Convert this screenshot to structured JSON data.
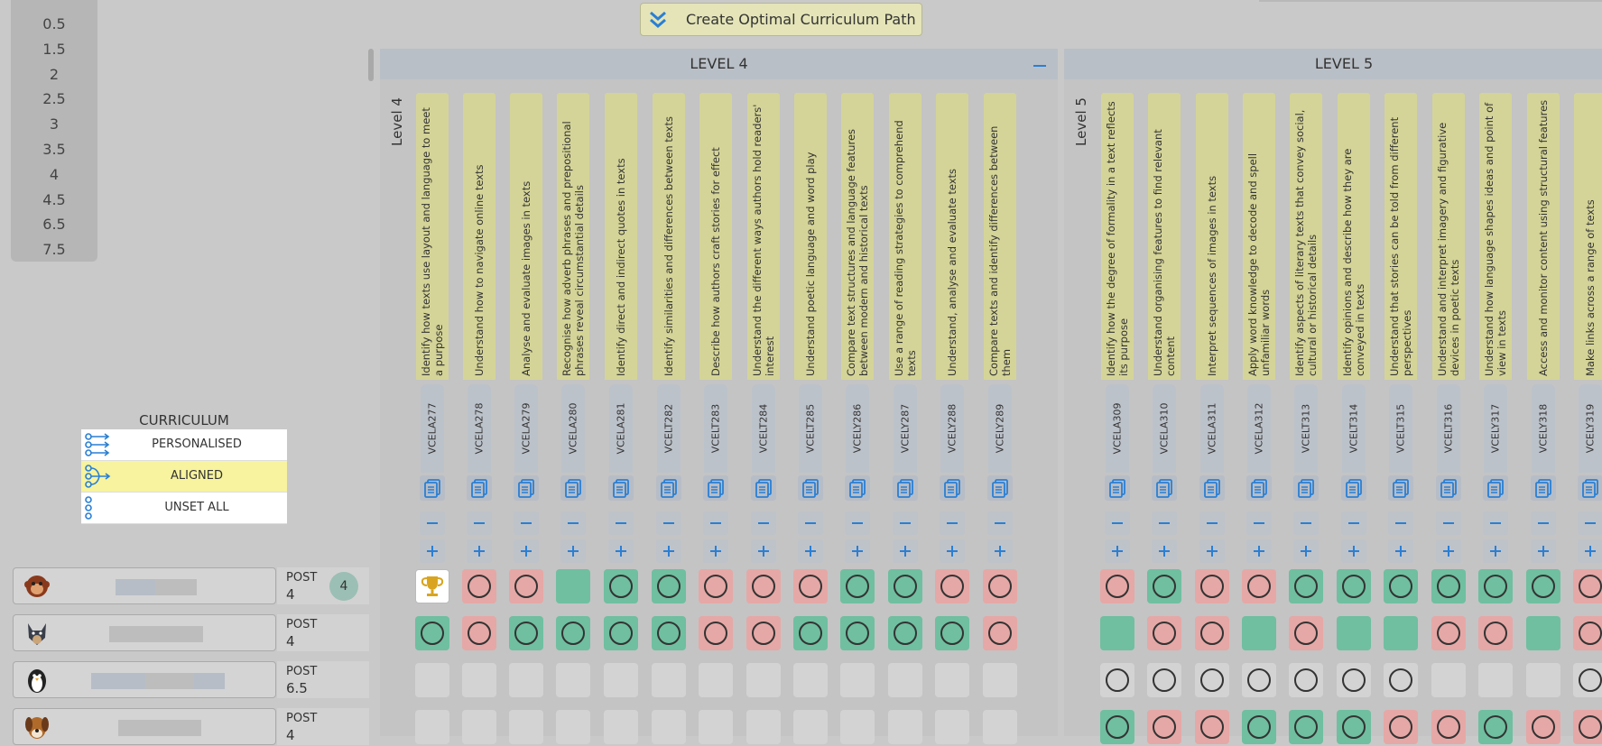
{
  "top_button": {
    "label": "Create Optimal Curriculum Path",
    "icon": "double-chevron-down-icon"
  },
  "scale": {
    "values": [
      "0.5",
      "1.5",
      "2",
      "2.5",
      "3",
      "3.5",
      "4",
      "4.5",
      "6.5",
      "7.5"
    ]
  },
  "curriculum": {
    "title": "CURRICULUM",
    "options": [
      {
        "label": "PERSONALISED",
        "icon": "personalised-path-icon",
        "selected": false
      },
      {
        "label": "ALIGNED",
        "icon": "aligned-path-icon",
        "selected": true
      },
      {
        "label": "UNSET ALL",
        "icon": "unset-icon",
        "selected": false
      }
    ]
  },
  "students": [
    {
      "avatar": "monkey-avatar-icon",
      "post_label": "POST",
      "post_value": "4",
      "badge": "4"
    },
    {
      "avatar": "wolf-avatar-icon",
      "post_label": "POST",
      "post_value": "4"
    },
    {
      "avatar": "penguin-avatar-icon",
      "post_label": "POST",
      "post_value": "6.5"
    },
    {
      "avatar": "dog-avatar-icon",
      "post_label": "POST",
      "post_value": "4"
    }
  ],
  "levels": [
    {
      "title": "LEVEL 4",
      "side_label": "Level 4",
      "objectives": [
        {
          "text": "Identify how texts use layout and language to meet a purpose",
          "code": "VCELA277"
        },
        {
          "text": "Understand how to navigate online texts",
          "code": "VCELA278"
        },
        {
          "text": "Analyse and evaluate images in texts",
          "code": "VCELA279"
        },
        {
          "text": "Recognise how adverb phrases and prepositional phrases reveal circumstantial details",
          "code": "VCELA280"
        },
        {
          "text": "Identify direct and indirect quotes in texts",
          "code": "VCELA281"
        },
        {
          "text": "Identify similarities and differences between texts",
          "code": "VCELT282"
        },
        {
          "text": "Describe how authors craft stories for effect",
          "code": "VCELT283"
        },
        {
          "text": "Understand the different ways authors hold readers' interest",
          "code": "VCELT284"
        },
        {
          "text": "Understand poetic language and word play",
          "code": "VCELT285"
        },
        {
          "text": "Compare text structures and language features between modern and historical texts",
          "code": "VCELY286"
        },
        {
          "text": "Use a range of reading strategies to comprehend texts",
          "code": "VCELY287"
        },
        {
          "text": "Understand, analyse and evaluate texts",
          "code": "VCELY288"
        },
        {
          "text": "Compare texts and identify differences between them",
          "code": "VCELY289"
        }
      ],
      "rows": [
        [
          "trophy",
          "r-ring",
          "r-ring",
          "g",
          "g-ring",
          "g-ring",
          "r-ring",
          "r-ring",
          "r-ring",
          "g-ring",
          "g-ring",
          "r-ring",
          "r-ring"
        ],
        [
          "g-ring",
          "r-ring",
          "g-ring",
          "g-ring",
          "g-ring",
          "g-ring",
          "r-ring",
          "r-ring",
          "g-ring",
          "g-ring",
          "g-ring",
          "g-ring",
          "r-ring"
        ],
        [
          "e",
          "e",
          "e",
          "e",
          "e",
          "e",
          "e",
          "e",
          "e",
          "e",
          "e",
          "e",
          "e"
        ],
        [
          "e",
          "e",
          "e",
          "e",
          "e",
          "e",
          "e",
          "e",
          "e",
          "e",
          "e",
          "e",
          "e"
        ]
      ]
    },
    {
      "title": "LEVEL 5",
      "side_label": "Level 5",
      "objectives": [
        {
          "text": "Identify how the degree of formality in a text reflects its purpose",
          "code": "VCELA309"
        },
        {
          "text": "Understand organising features to find relevant content",
          "code": "VCELA310"
        },
        {
          "text": "Interpret sequences of images in texts",
          "code": "VCELA311"
        },
        {
          "text": "Apply word knowledge to decode and spell unfamiliar words",
          "code": "VCELA312"
        },
        {
          "text": "Identify aspects of literary texts that convey social, cultural or historical details",
          "code": "VCELT313"
        },
        {
          "text": "Identify opinions and describe how they are conveyed in texts",
          "code": "VCELT314"
        },
        {
          "text": "Understand that stories can be told from different perspectives",
          "code": "VCELT315"
        },
        {
          "text": "Understand and interpret imagery and figurative devices in poetic texts",
          "code": "VCELT316"
        },
        {
          "text": "Understand how language shapes ideas and point of view in texts",
          "code": "VCELY317"
        },
        {
          "text": "Access and monitor content using structural features",
          "code": "VCELY318"
        },
        {
          "text": "Make links across a range of texts",
          "code": "VCELY319"
        }
      ],
      "rows": [
        [
          "r-ring",
          "g-ring",
          "r-ring",
          "r-ring",
          "g-ring",
          "g-ring",
          "g-ring",
          "g-ring",
          "g-ring",
          "g-ring",
          "r-ring"
        ],
        [
          "g",
          "r-ring",
          "r-ring",
          "g",
          "r-ring",
          "g",
          "g",
          "r-ring",
          "r-ring",
          "g",
          "r-ring"
        ],
        [
          "e-ring",
          "e-ring",
          "e-ring",
          "e-ring",
          "e-ring",
          "e-ring",
          "e-ring",
          "e",
          "e",
          "e",
          "e-ring"
        ],
        [
          "g-ring",
          "r-ring",
          "r-ring",
          "g-ring",
          "g-ring",
          "g-ring",
          "r-ring",
          "r-ring",
          "g-ring",
          "r-ring",
          "r-ring"
        ]
      ]
    }
  ],
  "colors": {
    "mastered": "#6fbfa0",
    "not_mastered": "#e5a8a6",
    "unset": "#d3d3d3",
    "objective_bg": "#d4d498",
    "accent": "#2a7fd4"
  }
}
